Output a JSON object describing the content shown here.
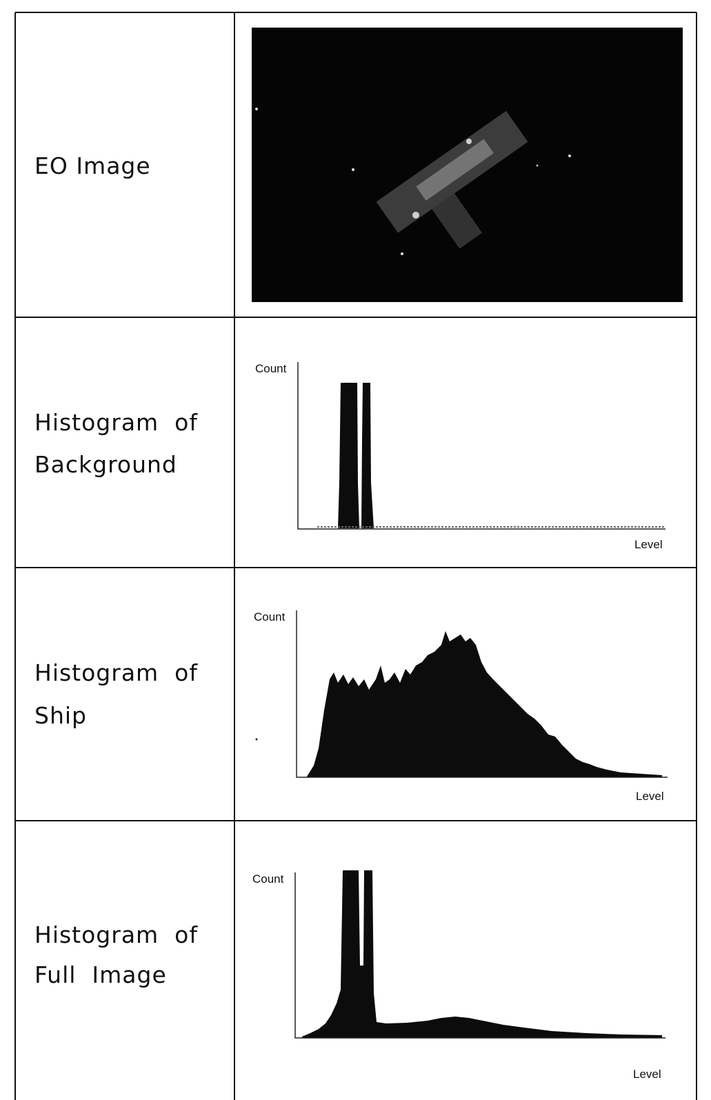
{
  "rows": [
    {
      "label_lines": [
        "EO Image"
      ]
    },
    {
      "label_lines": [
        "Histogram  of",
        "Background"
      ],
      "y_axis_label": "Count",
      "x_axis_label": "Level"
    },
    {
      "label_lines": [
        "Histogram  of",
        "Ship"
      ],
      "y_axis_label": "Count",
      "x_axis_label": "Level"
    },
    {
      "label_lines": [
        "Histogram  of",
        "Full  Image"
      ],
      "y_axis_label": "Count",
      "x_axis_label": "Level"
    }
  ]
}
